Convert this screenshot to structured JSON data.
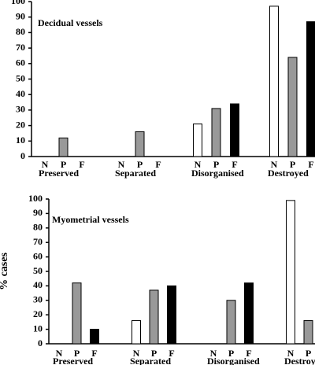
{
  "chart_data": [
    {
      "type": "bar",
      "title": "Decidual vessels",
      "categories": [
        "Preserved",
        "Separated",
        "Disorganised",
        "Destroyed"
      ],
      "series": [
        {
          "name": "N",
          "color": "#ffffff",
          "values": [
            0,
            0,
            21,
            97
          ]
        },
        {
          "name": "P",
          "color": "#999999",
          "values": [
            12,
            16,
            31,
            64
          ]
        },
        {
          "name": "F",
          "color": "#000000",
          "values": [
            0,
            0,
            34,
            87
          ]
        }
      ],
      "ylim": [
        0,
        100
      ],
      "yticks": [
        0,
        10,
        20,
        30,
        40,
        50,
        60,
        70,
        80,
        90,
        100
      ]
    },
    {
      "type": "bar",
      "title": "Myometrial vessels",
      "ylabel": "% cases",
      "categories": [
        "Preserved",
        "Separated",
        "Disorganised",
        "Destroyed"
      ],
      "series": [
        {
          "name": "N",
          "color": "#ffffff",
          "values": [
            0,
            16,
            0,
            99
          ]
        },
        {
          "name": "P",
          "color": "#999999",
          "values": [
            42,
            37,
            30,
            16
          ]
        },
        {
          "name": "F",
          "color": "#000000",
          "values": [
            10,
            40,
            42,
            null
          ]
        }
      ],
      "ylim": [
        0,
        100
      ],
      "yticks": [
        0,
        10,
        20,
        30,
        40,
        50,
        60,
        70,
        80,
        90,
        100
      ]
    }
  ]
}
